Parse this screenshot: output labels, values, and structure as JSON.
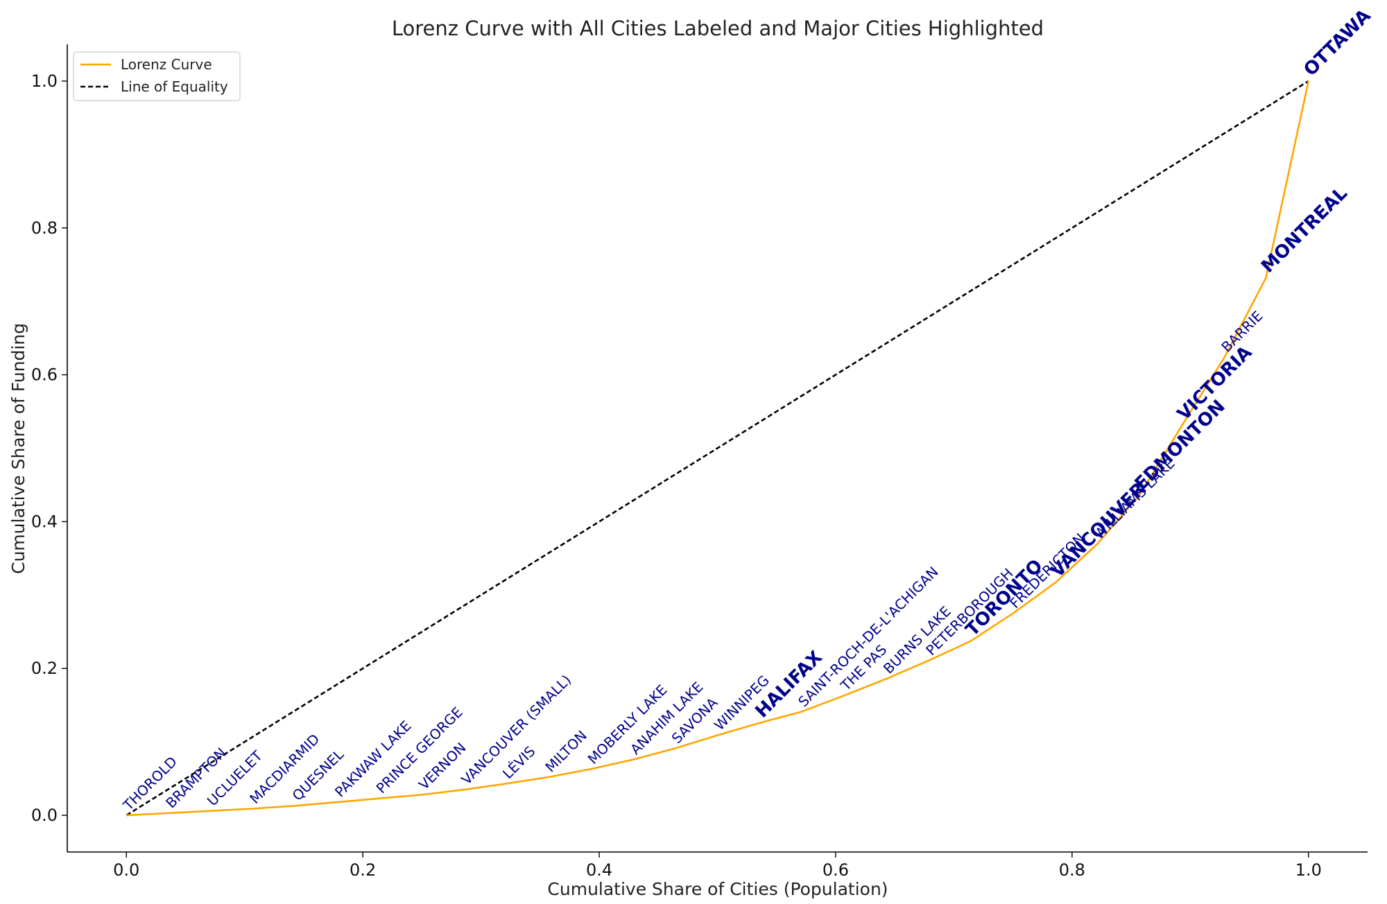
{
  "chart_data": {
    "type": "line",
    "title": "Lorenz Curve with All Cities Labeled and Major Cities Highlighted",
    "xlabel": "Cumulative Share of Cities (Population)",
    "ylabel": "Cumulative Share of Funding",
    "xlim": [
      -0.05,
      1.05
    ],
    "ylim": [
      -0.05,
      1.05
    ],
    "xticks": [
      "0.0",
      "0.2",
      "0.4",
      "0.6",
      "0.8",
      "1.0"
    ],
    "yticks": [
      "0.0",
      "0.2",
      "0.4",
      "0.6",
      "0.8",
      "1.0"
    ],
    "legend_position": "top-left",
    "colors": {
      "lorenz": "#FFA500",
      "equality": "#000000",
      "labels": "#00008B"
    },
    "series": [
      {
        "name": "Lorenz Curve",
        "x": [
          0.0,
          0.036,
          0.071,
          0.107,
          0.143,
          0.179,
          0.214,
          0.25,
          0.286,
          0.321,
          0.357,
          0.393,
          0.429,
          0.464,
          0.5,
          0.536,
          0.571,
          0.607,
          0.643,
          0.679,
          0.714,
          0.75,
          0.786,
          0.821,
          0.857,
          0.893,
          0.929,
          0.964,
          1.0
        ],
        "y": [
          0.0,
          0.003,
          0.006,
          0.009,
          0.013,
          0.018,
          0.023,
          0.028,
          0.035,
          0.043,
          0.052,
          0.063,
          0.076,
          0.091,
          0.109,
          0.126,
          0.141,
          0.163,
          0.186,
          0.211,
          0.237,
          0.275,
          0.317,
          0.369,
          0.436,
          0.531,
          0.624,
          0.732,
          1.0
        ],
        "style": "solid"
      },
      {
        "name": "Line of Equality",
        "x": [
          0.0,
          1.0
        ],
        "y": [
          0.0,
          1.0
        ],
        "style": "dashed"
      }
    ],
    "labels": [
      {
        "text": "THOROLD",
        "x": 0.0,
        "y": 0.0,
        "major": false
      },
      {
        "text": "BRAMPTON",
        "x": 0.036,
        "y": 0.003,
        "major": false
      },
      {
        "text": "UCLUELET",
        "x": 0.071,
        "y": 0.006,
        "major": false
      },
      {
        "text": "MACDIARMID",
        "x": 0.107,
        "y": 0.009,
        "major": false
      },
      {
        "text": "QUESNEL",
        "x": 0.143,
        "y": 0.013,
        "major": false
      },
      {
        "text": "PAKWAW LAKE",
        "x": 0.179,
        "y": 0.018,
        "major": false
      },
      {
        "text": "PRINCE GEORGE",
        "x": 0.214,
        "y": 0.023,
        "major": false
      },
      {
        "text": "VERNON",
        "x": 0.25,
        "y": 0.028,
        "major": false
      },
      {
        "text": "VANCOUVER (SMALL)",
        "x": 0.286,
        "y": 0.035,
        "major": false
      },
      {
        "text": "LÉVIS",
        "x": 0.321,
        "y": 0.043,
        "major": false
      },
      {
        "text": "MILTON",
        "x": 0.357,
        "y": 0.052,
        "major": false
      },
      {
        "text": "MOBERLY LAKE",
        "x": 0.393,
        "y": 0.063,
        "major": false
      },
      {
        "text": "ANAHIM LAKE",
        "x": 0.429,
        "y": 0.076,
        "major": false
      },
      {
        "text": "SAVONA",
        "x": 0.464,
        "y": 0.091,
        "major": false
      },
      {
        "text": "WINNIPEG",
        "x": 0.5,
        "y": 0.109,
        "major": false
      },
      {
        "text": "HALIFAX",
        "x": 0.536,
        "y": 0.126,
        "major": true
      },
      {
        "text": "SAINT-ROCH-DE-L'ACHIGAN",
        "x": 0.571,
        "y": 0.141,
        "major": false
      },
      {
        "text": "THE PAS",
        "x": 0.607,
        "y": 0.163,
        "major": false
      },
      {
        "text": "BURNS LAKE",
        "x": 0.643,
        "y": 0.186,
        "major": false
      },
      {
        "text": "PETERBOROUGH",
        "x": 0.679,
        "y": 0.211,
        "major": false
      },
      {
        "text": "TORONTO",
        "x": 0.714,
        "y": 0.237,
        "major": true
      },
      {
        "text": "FREDERICTON",
        "x": 0.75,
        "y": 0.275,
        "major": false
      },
      {
        "text": "VANCOUVER",
        "x": 0.786,
        "y": 0.317,
        "major": true
      },
      {
        "text": "WILLIAMS LAKE",
        "x": 0.821,
        "y": 0.369,
        "major": false
      },
      {
        "text": "EDMONTON",
        "x": 0.857,
        "y": 0.436,
        "major": true
      },
      {
        "text": "VICTORIA",
        "x": 0.893,
        "y": 0.531,
        "major": true
      },
      {
        "text": "BARRIE",
        "x": 0.929,
        "y": 0.624,
        "major": false
      },
      {
        "text": "MONTREAL",
        "x": 0.964,
        "y": 0.732,
        "major": true
      },
      {
        "text": "OTTAWA",
        "x": 1.0,
        "y": 1.0,
        "major": true
      }
    ]
  }
}
